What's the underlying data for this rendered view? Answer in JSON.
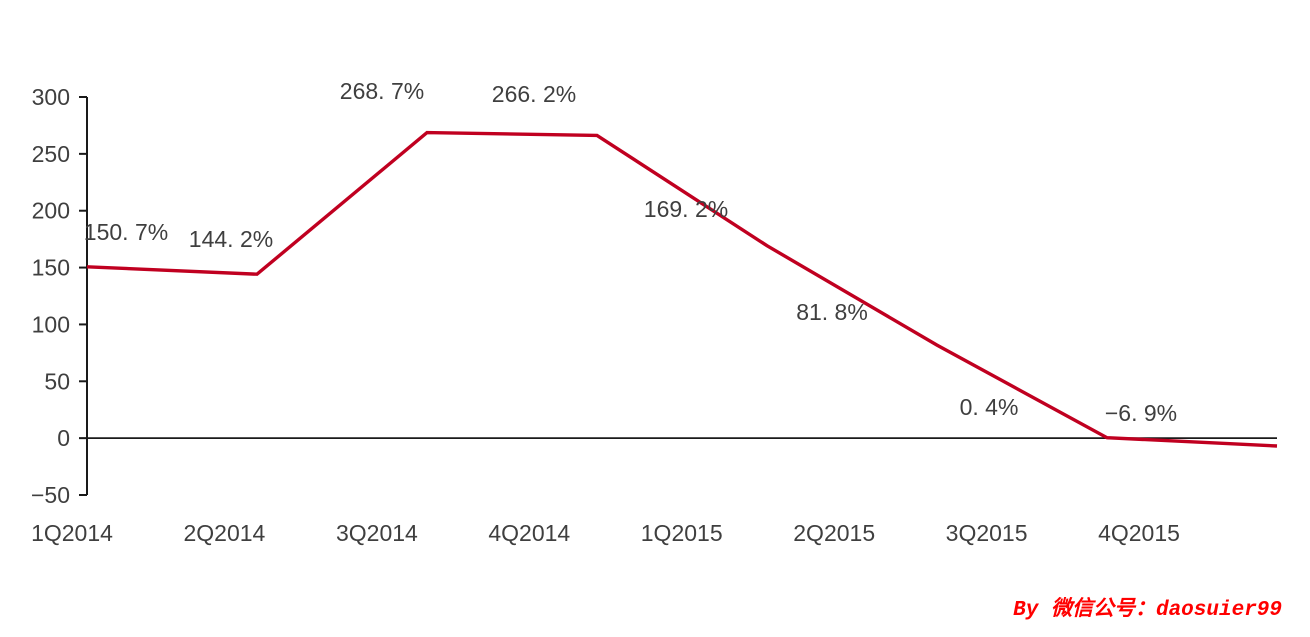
{
  "chart_data": {
    "type": "line",
    "categories": [
      "1Q2014",
      "2Q2014",
      "3Q2014",
      "4Q2014",
      "1Q2015",
      "2Q2015",
      "3Q2015",
      "4Q2015"
    ],
    "values": [
      150.7,
      144.2,
      268.7,
      266.2,
      169.2,
      81.8,
      0.4,
      -6.9
    ],
    "data_labels": [
      "150. 7%",
      "144. 2%",
      "268. 7%",
      "266. 2%",
      "169. 2%",
      "81. 8%",
      "0. 4%",
      "−6. 9%"
    ],
    "unit": "percent",
    "ylim": [
      -50,
      300
    ],
    "y_ticks": [
      300,
      250,
      200,
      150,
      100,
      50,
      0,
      -50
    ],
    "y_tick_labels": [
      "300",
      "250",
      "200",
      "150",
      "100",
      "50",
      "0",
      "−50"
    ],
    "xlabel": "",
    "ylabel": "",
    "legend": "none",
    "grid": "zero-baseline-only"
  },
  "colors": {
    "line": "#C00020",
    "tick_text": "#3F3F3F",
    "axis": "#1A1A1A",
    "background": "#FFFFFF",
    "watermark": "#FF0000"
  },
  "watermark": {
    "text": "By 微信公号：daosuier99"
  }
}
